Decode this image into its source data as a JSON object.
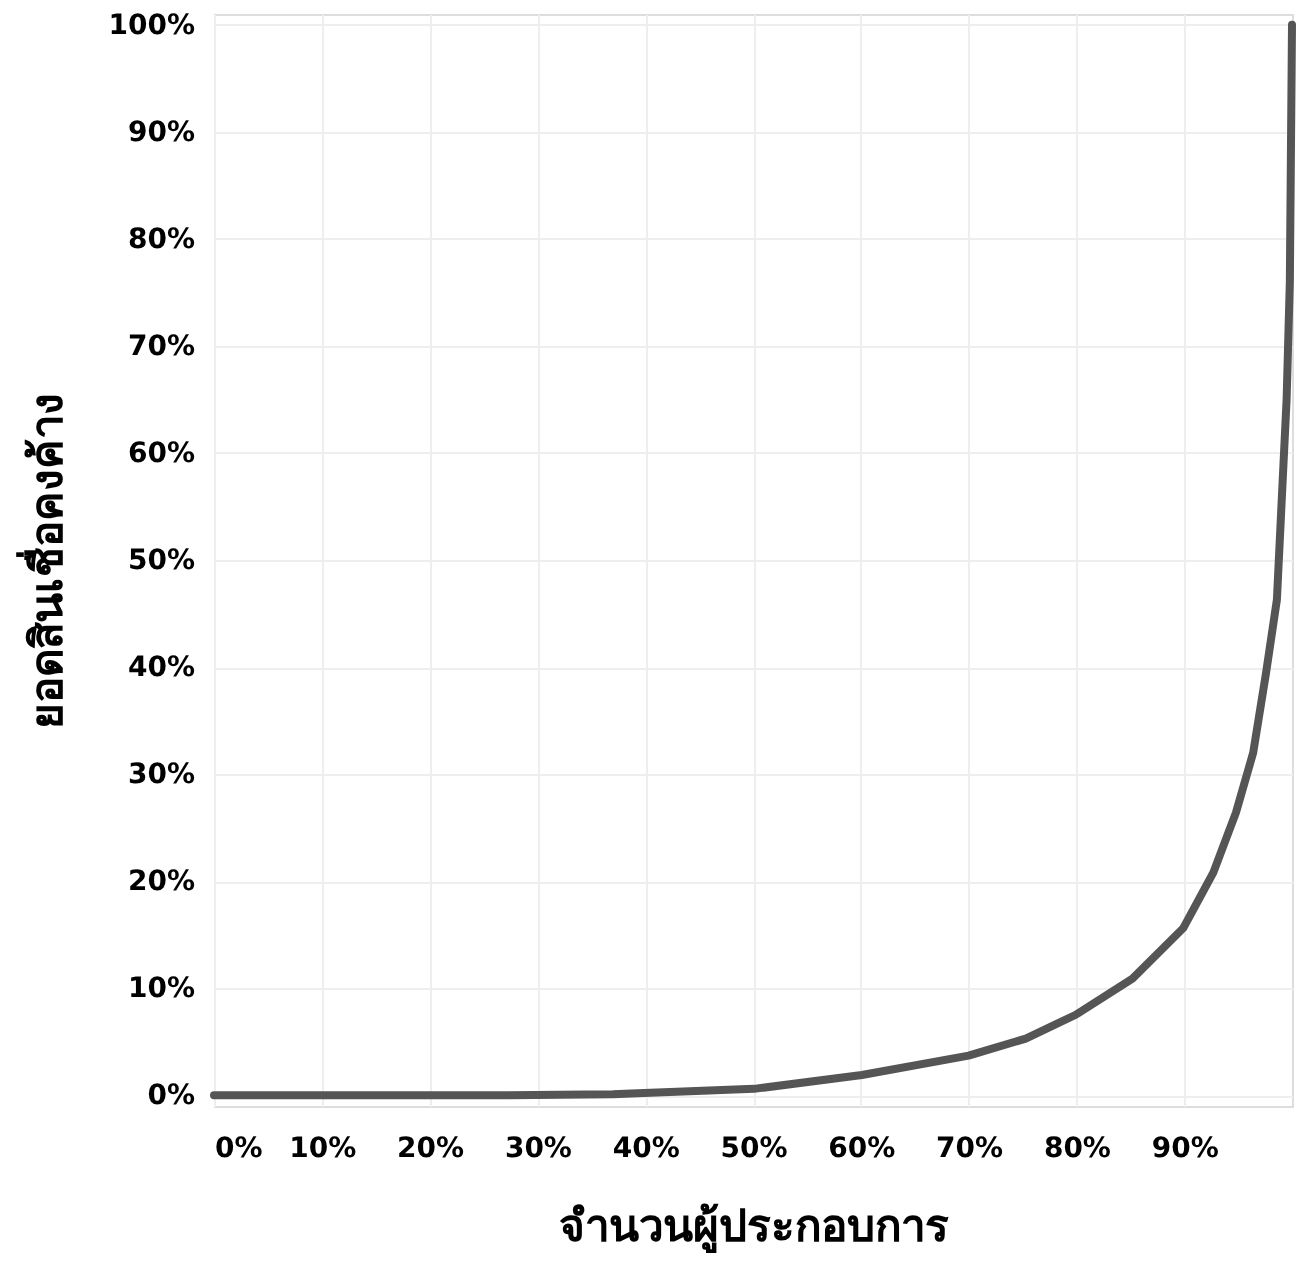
{
  "chart_data": {
    "type": "line",
    "xlabel": "จำนวนผู้ประกอบการ",
    "ylabel": "ยอดสินเชื่อคงค้าง",
    "x": [
      0,
      27,
      37,
      39.3,
      50.1,
      60.1,
      70,
      75.3,
      79.9,
      85.2,
      89.9,
      92.7,
      94.8,
      96.4,
      97.6,
      98.6,
      99.5,
      99.8,
      100
    ],
    "series": [
      {
        "color": "#555555",
        "values": [
          0,
          0,
          0.1,
          0.2,
          0.6,
          1.9,
          3.7,
          5.3,
          7.5,
          10.9,
          15.6,
          20.8,
          26.4,
          32,
          39.5,
          46.3,
          65,
          76,
          100
        ]
      }
    ],
    "xlim": [
      0,
      100
    ],
    "ylim": [
      -1,
      101
    ],
    "xticks": [
      {
        "value": 0,
        "label": "0%"
      },
      {
        "value": 10,
        "label": "10%"
      },
      {
        "value": 20,
        "label": "20%"
      },
      {
        "value": 30,
        "label": "30%"
      },
      {
        "value": 40,
        "label": "40%"
      },
      {
        "value": 50,
        "label": "50%"
      },
      {
        "value": 60,
        "label": "60%"
      },
      {
        "value": 70,
        "label": "70%"
      },
      {
        "value": 80,
        "label": "80%"
      },
      {
        "value": 90,
        "label": "90%"
      }
    ],
    "yticks": [
      {
        "value": 0,
        "label": "0%"
      },
      {
        "value": 10,
        "label": "10%"
      },
      {
        "value": 20,
        "label": "20%"
      },
      {
        "value": 30,
        "label": "30%"
      },
      {
        "value": 40,
        "label": "40%"
      },
      {
        "value": 50,
        "label": "50%"
      },
      {
        "value": 60,
        "label": "60%"
      },
      {
        "value": 70,
        "label": "70%"
      },
      {
        "value": 80,
        "label": "80%"
      },
      {
        "value": 90,
        "label": "90%"
      },
      {
        "value": 100,
        "label": "100%"
      }
    ],
    "grid": true,
    "marker": "none",
    "line_style": "solid"
  }
}
